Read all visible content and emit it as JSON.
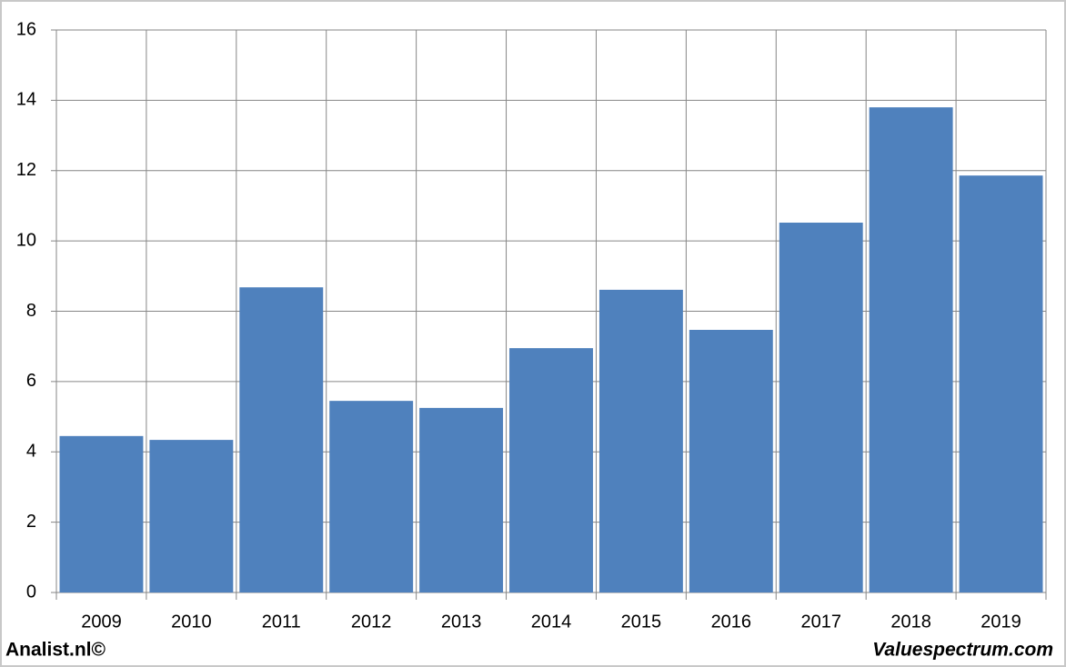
{
  "chart_data": {
    "type": "bar",
    "categories": [
      "2009",
      "2010",
      "2011",
      "2012",
      "2013",
      "2014",
      "2015",
      "2016",
      "2017",
      "2018",
      "2019"
    ],
    "values": [
      4.45,
      4.34,
      8.68,
      5.45,
      5.25,
      6.95,
      8.61,
      7.47,
      10.52,
      13.8,
      11.86
    ],
    "color": "#4f81bd",
    "ylim": [
      0,
      16
    ],
    "yticks": [
      0,
      2,
      4,
      6,
      8,
      10,
      12,
      14,
      16
    ],
    "grid": true
  },
  "footer": {
    "left": "Analist.nl©",
    "right": "Valuespectrum.com"
  }
}
